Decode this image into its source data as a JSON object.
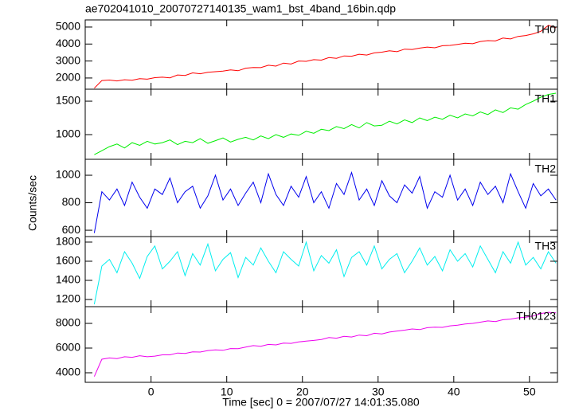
{
  "chart_data": {
    "type": "line",
    "title": "ae702041010_20070727140135_wam1_bst_4band_16bin.qdp",
    "xlabel": "Time [sec] 0 = 2007/07/27 14:01:35.080",
    "ylabel": "Counts/sec",
    "xlim": [
      -8.7,
      53.7
    ],
    "xticks": [
      0,
      10,
      20,
      30,
      40,
      50
    ],
    "x": [
      -7.5,
      -6.5,
      -5.5,
      -4.5,
      -3.5,
      -2.5,
      -1.5,
      -0.5,
      0.5,
      1.5,
      2.5,
      3.5,
      4.5,
      5.5,
      6.5,
      7.5,
      8.5,
      9.5,
      10.5,
      11.5,
      12.5,
      13.5,
      14.5,
      15.5,
      16.5,
      17.5,
      18.5,
      19.5,
      20.5,
      21.5,
      22.5,
      23.5,
      24.5,
      25.5,
      26.5,
      27.5,
      28.5,
      29.5,
      30.5,
      31.5,
      32.5,
      33.5,
      34.5,
      35.5,
      36.5,
      37.5,
      38.5,
      39.5,
      40.5,
      41.5,
      42.5,
      43.5,
      44.5,
      45.5,
      46.5,
      47.5,
      48.5,
      49.5,
      50.5,
      51.5,
      52.5,
      53.5
    ],
    "series": [
      {
        "name": "TH0",
        "color": "#ff0000",
        "ylim": [
          1340,
          5420
        ],
        "yticks": [
          2000,
          3000,
          4000,
          5000
        ],
        "values": [
          1400,
          1850,
          1880,
          1830,
          1900,
          1870,
          1960,
          1930,
          2020,
          2050,
          2010,
          2180,
          2150,
          2300,
          2250,
          2340,
          2370,
          2410,
          2480,
          2430,
          2580,
          2620,
          2610,
          2750,
          2700,
          2880,
          2820,
          3000,
          2980,
          3080,
          3050,
          3200,
          3160,
          3300,
          3280,
          3400,
          3350,
          3480,
          3520,
          3600,
          3550,
          3700,
          3680,
          3760,
          3820,
          3780,
          3900,
          3920,
          3980,
          4050,
          4020,
          4150,
          4200,
          4180,
          4350,
          4300,
          4450,
          4500,
          4600,
          4750,
          5100,
          4950
        ]
      },
      {
        "name": "TH1",
        "color": "#00ee00",
        "ylim": [
          631,
          1679
        ],
        "yticks": [
          1000,
          1500
        ],
        "values": [
          700,
          760,
          820,
          860,
          800,
          880,
          840,
          900,
          860,
          880,
          920,
          850,
          900,
          880,
          940,
          870,
          910,
          950,
          890,
          930,
          960,
          920,
          980,
          940,
          1000,
          960,
          1010,
          990,
          1050,
          1020,
          1080,
          1060,
          1120,
          1090,
          1150,
          1100,
          1180,
          1130,
          1140,
          1200,
          1160,
          1220,
          1180,
          1250,
          1210,
          1260,
          1230,
          1290,
          1250,
          1310,
          1280,
          1340,
          1300,
          1370,
          1330,
          1400,
          1380,
          1450,
          1500,
          1560,
          1600,
          1620
        ]
      },
      {
        "name": "TH2",
        "color": "#0000ee",
        "ylim": [
          554,
          1116
        ],
        "yticks": [
          600,
          800,
          1000
        ],
        "values": [
          580,
          880,
          820,
          900,
          780,
          950,
          840,
          760,
          900,
          860,
          980,
          800,
          880,
          920,
          760,
          850,
          1000,
          820,
          900,
          780,
          870,
          950,
          800,
          1010,
          860,
          780,
          920,
          840,
          990,
          800,
          880,
          760,
          940,
          860,
          1020,
          820,
          900,
          780,
          960,
          850,
          800,
          930,
          870,
          990,
          760,
          880,
          840,
          1000,
          820,
          900,
          780,
          950,
          860,
          920,
          800,
          1010,
          880,
          760,
          940,
          850,
          900,
          820
        ]
      },
      {
        "name": "TH3",
        "color": "#00eeee",
        "ylim": [
          1125,
          1858
        ],
        "yticks": [
          1200,
          1400,
          1600,
          1800
        ],
        "values": [
          1150,
          1550,
          1620,
          1480,
          1700,
          1580,
          1420,
          1650,
          1760,
          1520,
          1600,
          1700,
          1450,
          1680,
          1560,
          1780,
          1500,
          1620,
          1690,
          1430,
          1640,
          1560,
          1740,
          1600,
          1480,
          1700,
          1620,
          1550,
          1800,
          1500,
          1660,
          1580,
          1720,
          1440,
          1640,
          1700,
          1560,
          1760,
          1520,
          1620,
          1680,
          1480,
          1600,
          1740,
          1560,
          1650,
          1500,
          1720,
          1600,
          1680,
          1540,
          1760,
          1620,
          1480,
          1700,
          1580,
          1800,
          1560,
          1640,
          1520,
          1700,
          1580
        ]
      },
      {
        "name": "TH0123",
        "color": "#ee00ee",
        "ylim": [
          3226,
          9355
        ],
        "yticks": [
          4000,
          6000,
          8000
        ],
        "values": [
          3700,
          5100,
          5200,
          5150,
          5300,
          5250,
          5380,
          5300,
          5350,
          5450,
          5450,
          5600,
          5560,
          5700,
          5680,
          5800,
          5850,
          5820,
          5960,
          5950,
          6080,
          6200,
          6150,
          6300,
          6260,
          6400,
          6380,
          6500,
          6560,
          6620,
          6700,
          6850,
          6800,
          6950,
          6900,
          7050,
          7000,
          7200,
          7150,
          7300,
          7380,
          7450,
          7550,
          7500,
          7650,
          7700,
          7680,
          7800,
          7850,
          7950,
          8000,
          8100,
          8200,
          8150,
          8300,
          8350,
          8450,
          8500,
          8600,
          8800,
          8900,
          8850
        ]
      }
    ]
  }
}
